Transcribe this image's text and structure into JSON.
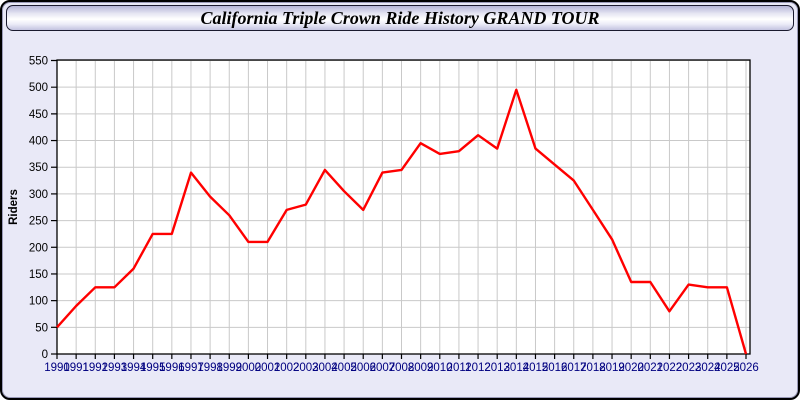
{
  "window": {
    "title": "California Triple Crown Ride History GRAND TOUR"
  },
  "colors": {
    "window_bg": "#e9e9f7",
    "plot_bg": "#ffffff",
    "grid": "#c9c9c9",
    "axis": "#000000",
    "line": "#ff0000",
    "x_tick_label": "#000080",
    "y_tick_label": "#000000",
    "y_axis_title": "#000000",
    "border": "#000000"
  },
  "chart_data": {
    "type": "line",
    "title": "California Triple Crown Ride History GRAND TOUR",
    "xlabel": "",
    "ylabel": "Riders",
    "ylim": [
      0,
      550
    ],
    "ytick_step": 50,
    "grid": true,
    "legend": "none",
    "x": [
      1990,
      1991,
      1992,
      1993,
      1994,
      1995,
      1996,
      1997,
      1998,
      1999,
      2000,
      2001,
      2002,
      2003,
      2004,
      2005,
      2006,
      2007,
      2008,
      2009,
      2010,
      2011,
      2012,
      2013,
      2014,
      2015,
      2016,
      2017,
      2018,
      2019,
      2020,
      2021,
      2022,
      2023,
      2024,
      2025,
      2026
    ],
    "series": [
      {
        "name": "Riders",
        "color": "#ff0000",
        "values": [
          50,
          90,
          125,
          125,
          160,
          225,
          225,
          340,
          295,
          260,
          210,
          210,
          270,
          280,
          345,
          305,
          270,
          340,
          345,
          395,
          375,
          380,
          410,
          385,
          495,
          385,
          355,
          325,
          270,
          215,
          135,
          135,
          80,
          130,
          125,
          125,
          0
        ]
      }
    ]
  }
}
